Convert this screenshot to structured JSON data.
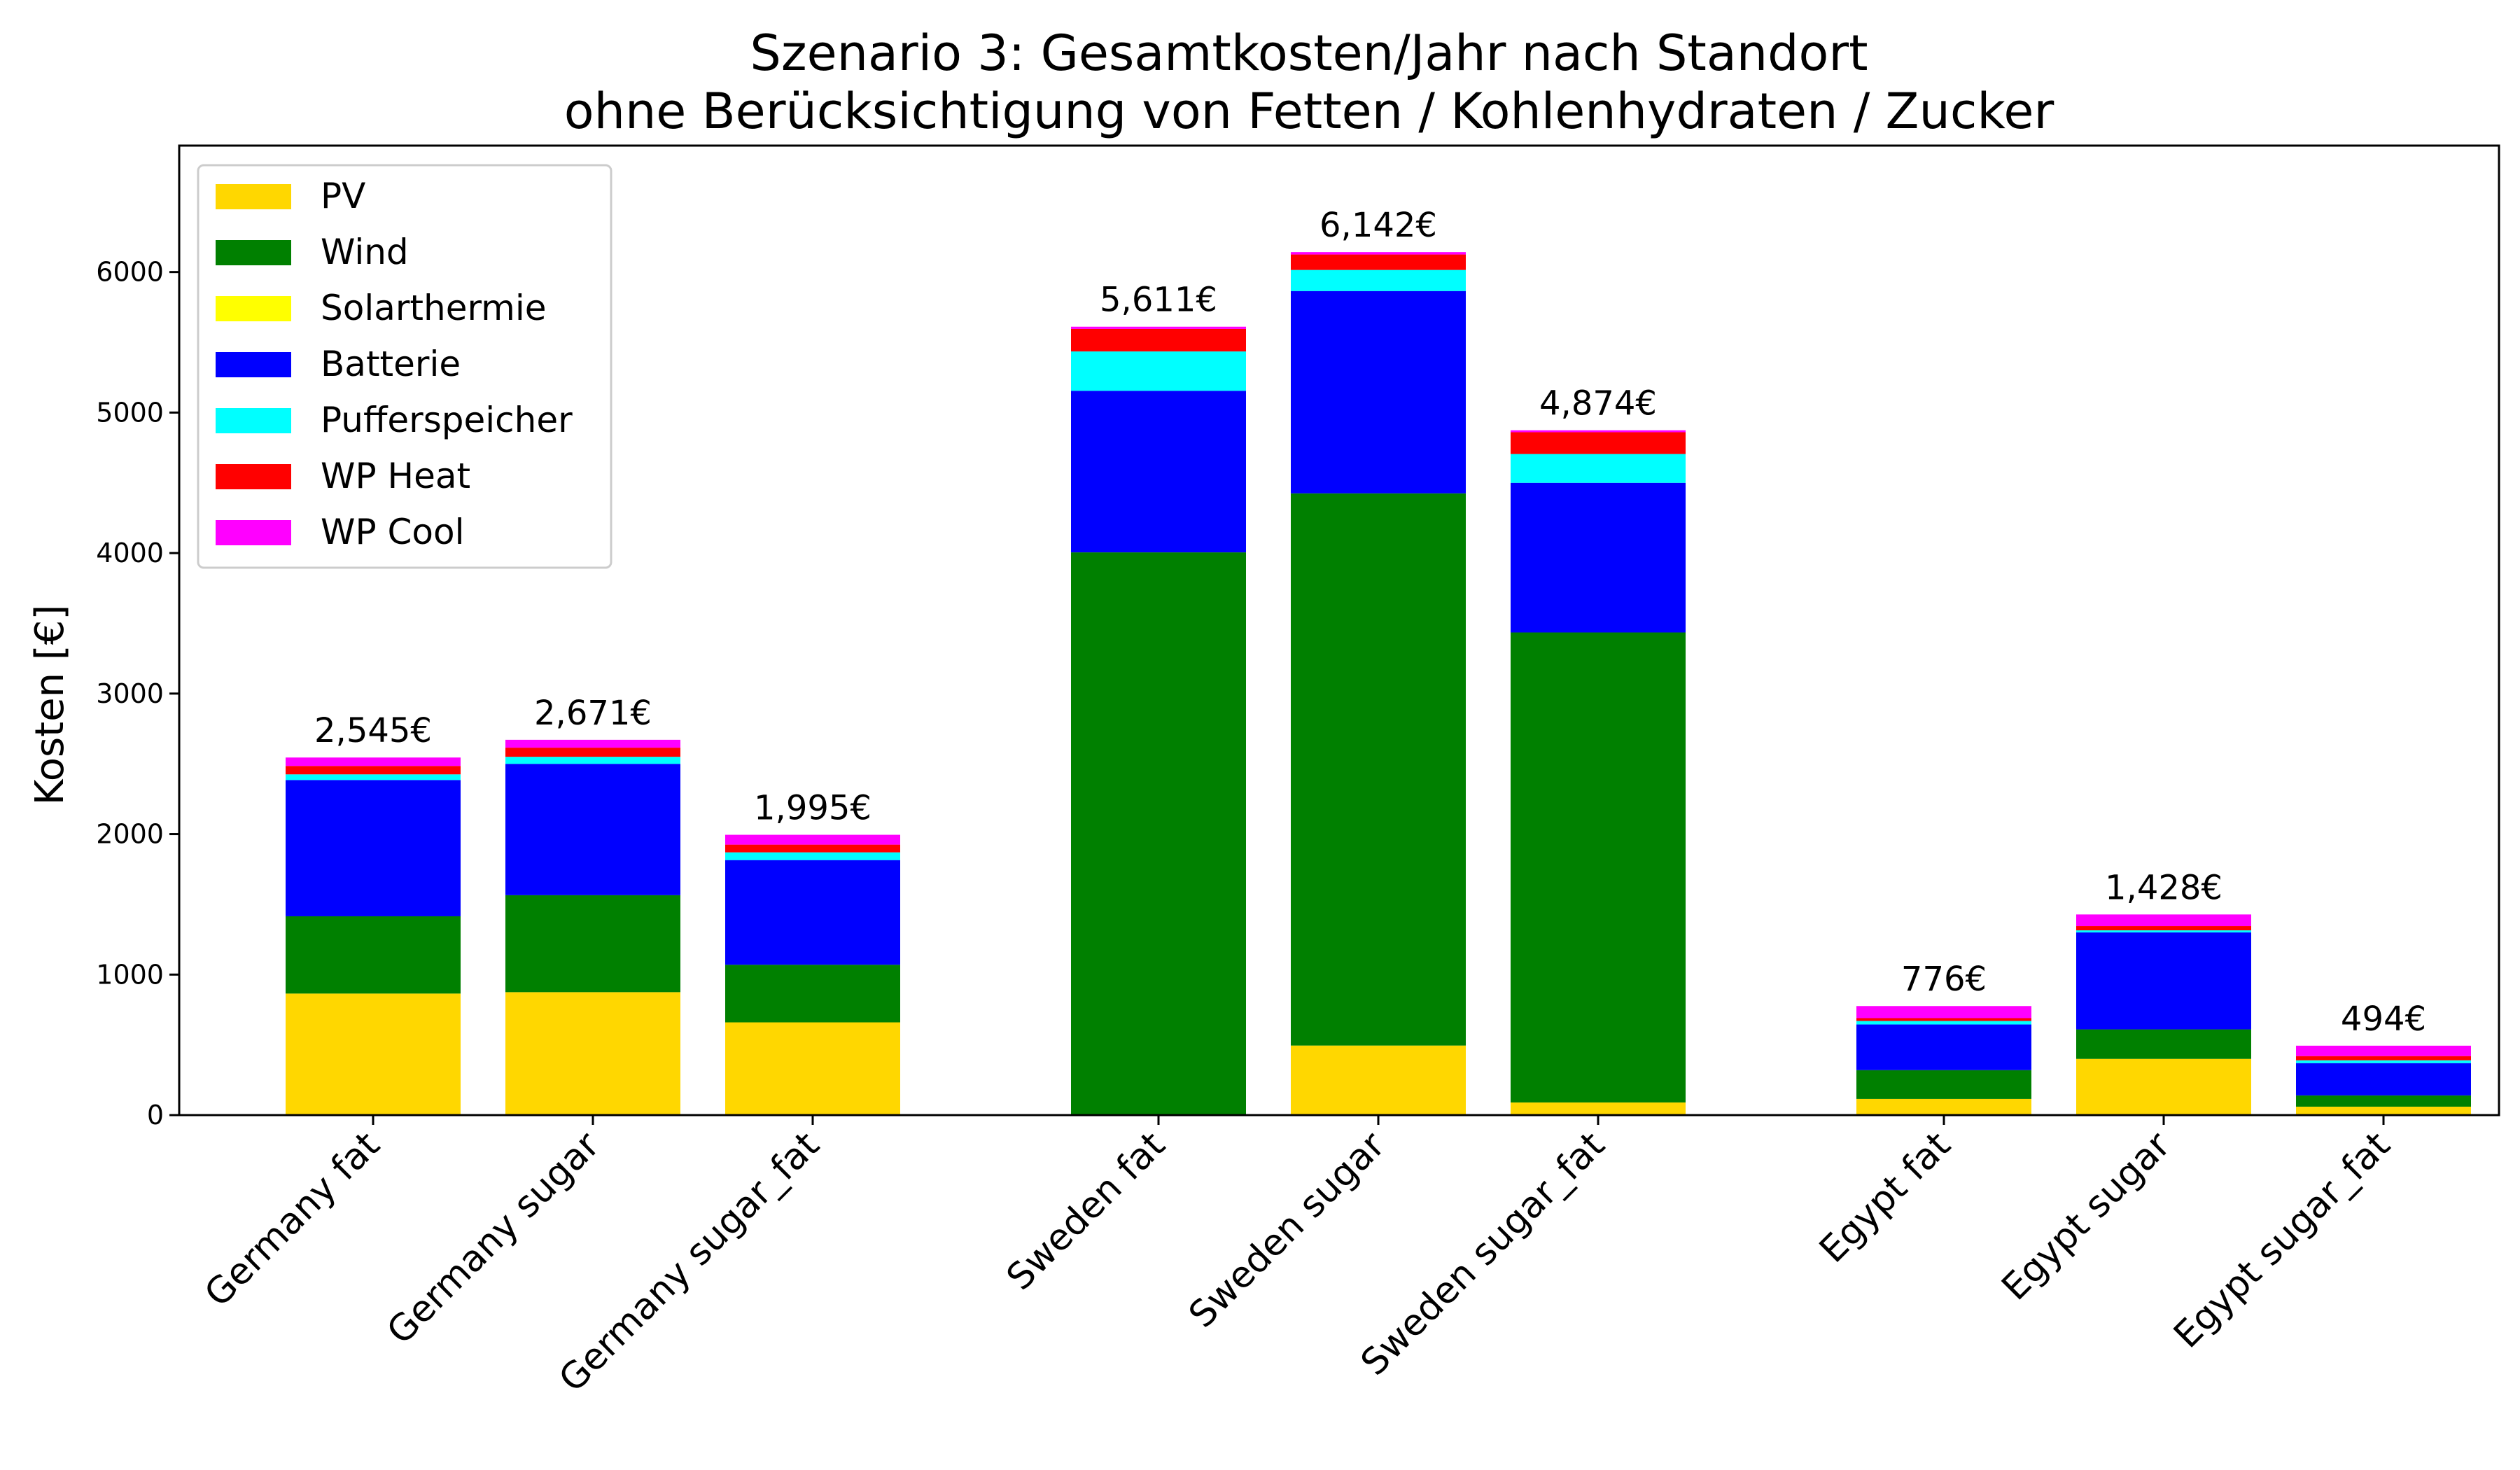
{
  "chart_data": {
    "type": "bar",
    "stacked": true,
    "title": "Szenario 3: Gesamtkosten/Jahr nach Standort",
    "subtitle": "ohne Berücksichtigung von Fetten / Kohlenhydraten / Zucker",
    "xlabel": "",
    "ylabel": "Kosten [€]",
    "ylim": [
      0,
      6900
    ],
    "yticks": [
      "0",
      "1000",
      "2000",
      "3000",
      "4000",
      "5000",
      "6000"
    ],
    "legend_position": "top-left",
    "categories": [
      "Germany fat",
      "Germany sugar",
      "Germany sugar_fat",
      "Sweden fat",
      "Sweden sugar",
      "Sweden sugar_fat",
      "Egypt fat",
      "Egypt sugar",
      "Egypt sugar_fat"
    ],
    "groups": [
      [
        0,
        1,
        2
      ],
      [
        3,
        4,
        5
      ],
      [
        6,
        7,
        8
      ]
    ],
    "series": [
      {
        "name": "PV",
        "color": "#FFD700",
        "values": [
          865,
          875,
          660,
          0,
          495,
          90,
          115,
          400,
          60
        ]
      },
      {
        "name": "Wind",
        "color": "#008000",
        "values": [
          550,
          690,
          410,
          4005,
          3930,
          3345,
          205,
          210,
          80
        ]
      },
      {
        "name": "Solarthermie",
        "color": "#FFFF00",
        "values": [
          0,
          0,
          0,
          0,
          0,
          0,
          0,
          0,
          0
        ]
      },
      {
        "name": "Batterie",
        "color": "#0000FF",
        "values": [
          970,
          935,
          745,
          1150,
          1440,
          1065,
          325,
          690,
          230
        ]
      },
      {
        "name": "Pufferspeicher",
        "color": "#00FFFF",
        "values": [
          40,
          50,
          55,
          280,
          150,
          205,
          25,
          15,
          20
        ]
      },
      {
        "name": "WP Heat",
        "color": "#FF0000",
        "values": [
          60,
          65,
          55,
          160,
          110,
          155,
          20,
          30,
          30
        ]
      },
      {
        "name": "WP Cool",
        "color": "#FF00FF",
        "values": [
          60,
          56,
          70,
          16,
          17,
          14,
          86,
          83,
          74
        ]
      }
    ],
    "totals": [
      2545,
      2671,
      1995,
      5611,
      6142,
      4874,
      776,
      1428,
      494
    ],
    "total_labels": [
      "2,545€",
      "2,671€",
      "1,995€",
      "5,611€",
      "6,142€",
      "4,874€",
      "776€",
      "1,428€",
      "494€"
    ]
  }
}
